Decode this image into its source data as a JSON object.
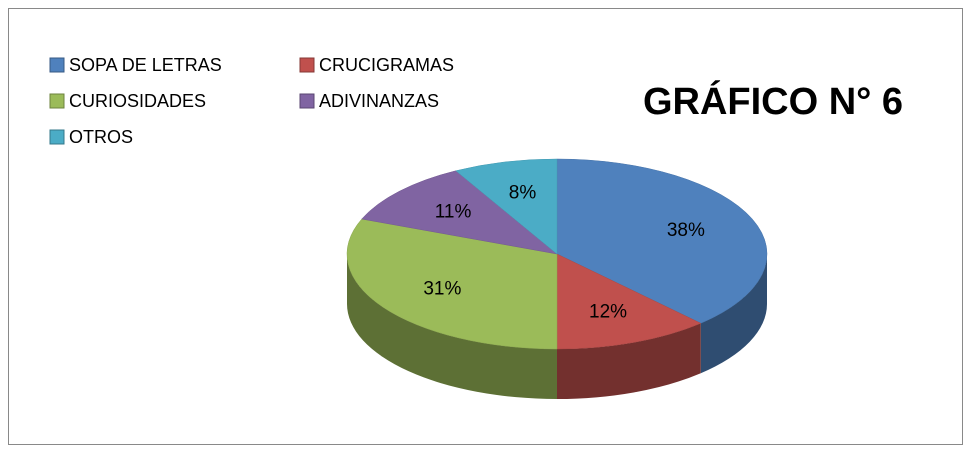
{
  "chart_data": {
    "type": "pie",
    "title": "GRÁFICO N° 6",
    "categories": [
      "SOPA DE LETRAS",
      "CRUCIGRAMAS",
      "CURIOSIDADES",
      "ADIVINANZAS",
      "OTROS"
    ],
    "values": [
      38,
      12,
      31,
      11,
      8
    ],
    "value_labels": [
      "38%",
      "12%",
      "31%",
      "11%",
      "8%"
    ],
    "colors": [
      "#4f81bd",
      "#c0504d",
      "#9bbb59",
      "#8064a2",
      "#4bacc6"
    ],
    "legend": "top-left"
  }
}
